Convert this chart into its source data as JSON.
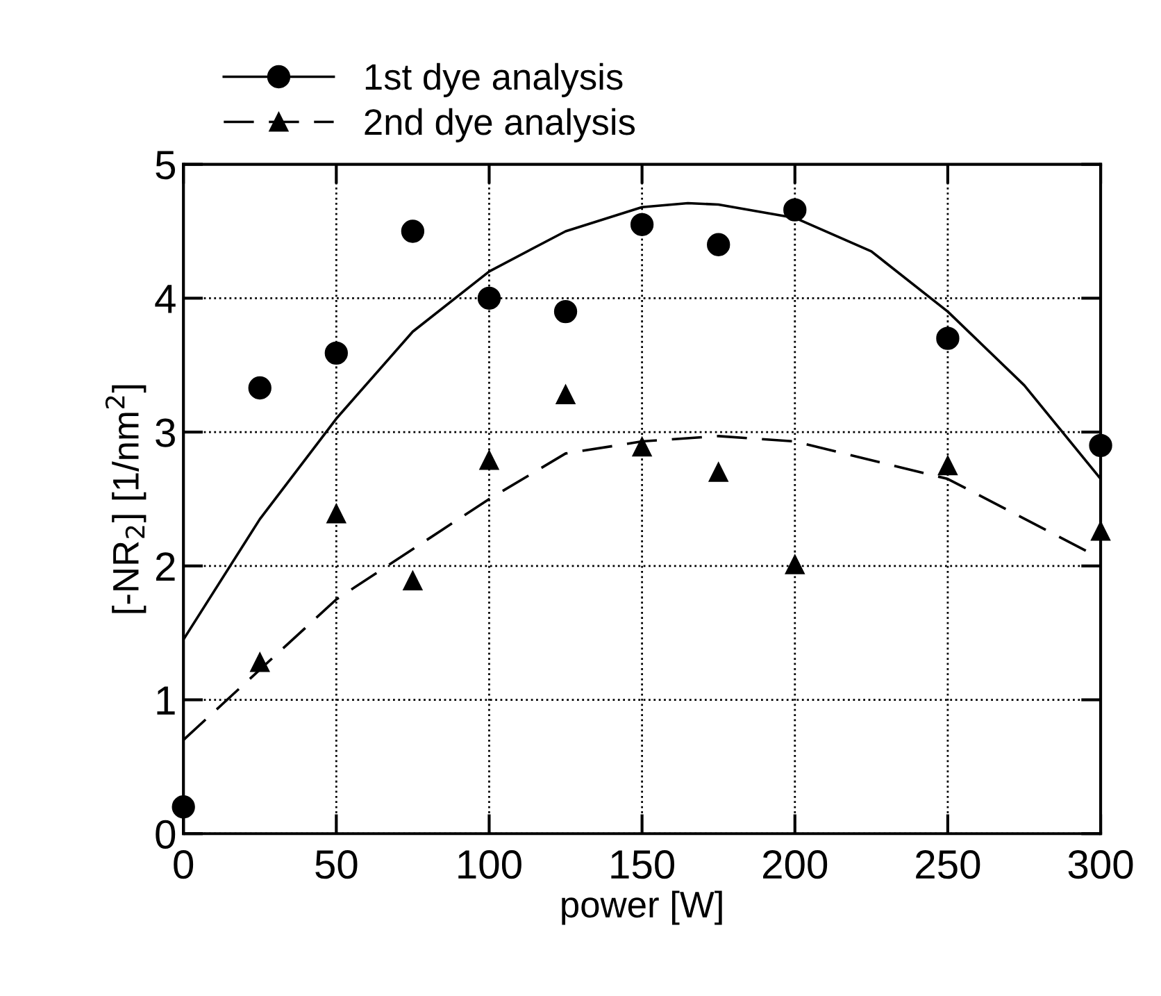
{
  "chart_data": {
    "type": "scatter",
    "xlabel": "power [W]",
    "ylabel": "[-NR$_{2}$] [1/nm$^{2}$]",
    "xlim": [
      0,
      300
    ],
    "ylim": [
      0,
      5
    ],
    "xticks": [
      0,
      50,
      100,
      150,
      200,
      250,
      300
    ],
    "yticks": [
      0,
      1,
      2,
      3,
      4,
      5
    ],
    "grid": true,
    "legend": "top left",
    "series": [
      {
        "name": "1st dye analysis",
        "marker": "circle",
        "color": "#000000",
        "x": [
          0,
          25,
          50,
          75,
          100,
          125,
          150,
          175,
          200,
          250,
          300
        ],
        "values": [
          0.2,
          3.33,
          3.59,
          4.5,
          4.0,
          3.9,
          4.55,
          4.4,
          4.66,
          3.7,
          2.9
        ]
      },
      {
        "type": "line",
        "line_style": "solid",
        "color": "#000000",
        "x": [
          0,
          25,
          50,
          75,
          100,
          125,
          150,
          165,
          175,
          200,
          225,
          250,
          275,
          300
        ],
        "values": [
          1.45,
          2.35,
          3.1,
          3.75,
          4.2,
          4.5,
          4.68,
          4.71,
          4.7,
          4.6,
          4.35,
          3.9,
          3.35,
          2.65
        ]
      },
      {
        "name": "2nd dye analysis",
        "marker": "triangle",
        "color": "#000000",
        "x": [
          25,
          50,
          75,
          100,
          125,
          150,
          175,
          200,
          250,
          300
        ],
        "values": [
          1.28,
          2.39,
          1.89,
          2.79,
          3.28,
          2.89,
          2.7,
          2.01,
          2.75,
          2.26
        ]
      },
      {
        "type": "line",
        "line_style": "dashed",
        "color": "#000000",
        "x": [
          0,
          50,
          100,
          125,
          150,
          175,
          200,
          250,
          298
        ],
        "values": [
          0.7,
          1.75,
          2.5,
          2.84,
          2.93,
          2.97,
          2.93,
          2.65,
          2.08
        ]
      }
    ]
  }
}
